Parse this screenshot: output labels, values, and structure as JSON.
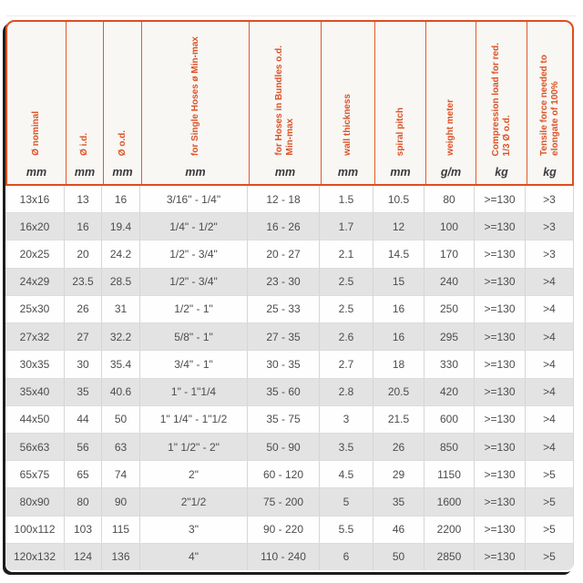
{
  "colors": {
    "accent_orange_border": "#e04d1f",
    "accent_orange_text": "#dd5227",
    "header_background": "#f8f7f4",
    "zebra_row_gray": "#e3e3e3",
    "data_text": "#4c4c4e",
    "shadow_dark": "#1d1d1b"
  },
  "table": {
    "columns": [
      {
        "label": "Ø nominal",
        "unit": "mm"
      },
      {
        "label": "Ø i.d.",
        "unit": "mm"
      },
      {
        "label": "Ø o.d.",
        "unit": "mm"
      },
      {
        "label": "for Single Hoses ø Min-max",
        "unit": "mm"
      },
      {
        "label": "for Hoses in Bundles o.d.\nMin-max",
        "unit": "mm"
      },
      {
        "label": "wall thickness",
        "unit": "mm"
      },
      {
        "label": "spiral pitch",
        "unit": "mm"
      },
      {
        "label": "weight meter",
        "unit": "g/m"
      },
      {
        "label": "Compression load for red.\n1/3 Ø o.d.",
        "unit": "kg"
      },
      {
        "label": "Tensile force needed to\nelongate of 100%",
        "unit": "kg"
      }
    ],
    "rows": [
      [
        "13x16",
        "13",
        "16",
        "3/16\" - 1/4\"",
        "12 - 18",
        "1.5",
        "10.5",
        "80",
        ">=130",
        ">3"
      ],
      [
        "16x20",
        "16",
        "19.4",
        "1/4\" - 1/2\"",
        "16 - 26",
        "1.7",
        "12",
        "100",
        ">=130",
        ">3"
      ],
      [
        "20x25",
        "20",
        "24.2",
        "1/2\" - 3/4\"",
        "20 - 27",
        "2.1",
        "14.5",
        "170",
        ">=130",
        ">3"
      ],
      [
        "24x29",
        "23.5",
        "28.5",
        "1/2\" - 3/4\"",
        "23 - 30",
        "2.5",
        "15",
        "240",
        ">=130",
        ">4"
      ],
      [
        "25x30",
        "26",
        "31",
        "1/2\" - 1\"",
        "25 - 33",
        "2.5",
        "16",
        "250",
        ">=130",
        ">4"
      ],
      [
        "27x32",
        "27",
        "32.2",
        "5/8\" - 1\"",
        "27 - 35",
        "2.6",
        "16",
        "295",
        ">=130",
        ">4"
      ],
      [
        "30x35",
        "30",
        "35.4",
        "3/4\" - 1\"",
        "30 - 35",
        "2.7",
        "18",
        "330",
        ">=130",
        ">4"
      ],
      [
        "35x40",
        "35",
        "40.6",
        "1\" - 1\"1/4",
        "35 - 60",
        "2.8",
        "20.5",
        "420",
        ">=130",
        ">4"
      ],
      [
        "44x50",
        "44",
        "50",
        "1\" 1/4\" - 1\"1/2",
        "35 - 75",
        "3",
        "21.5",
        "600",
        ">=130",
        ">4"
      ],
      [
        "56x63",
        "56",
        "63",
        "1\" 1/2\" - 2\"",
        "50 - 90",
        "3.5",
        "26",
        "850",
        ">=130",
        ">4"
      ],
      [
        "65x75",
        "65",
        "74",
        "2\"",
        "60 - 120",
        "4.5",
        "29",
        "1150",
        ">=130",
        ">5"
      ],
      [
        "80x90",
        "80",
        "90",
        "2\"1/2",
        "75 - 200",
        "5",
        "35",
        "1600",
        ">=130",
        ">5"
      ],
      [
        "100x112",
        "103",
        "115",
        "3\"",
        "90 - 220",
        "5.5",
        "46",
        "2200",
        ">=130",
        ">5"
      ],
      [
        "120x132",
        "124",
        "136",
        "4\"",
        "110 - 240",
        "6",
        "50",
        "2850",
        ">=130",
        ">5"
      ]
    ]
  }
}
